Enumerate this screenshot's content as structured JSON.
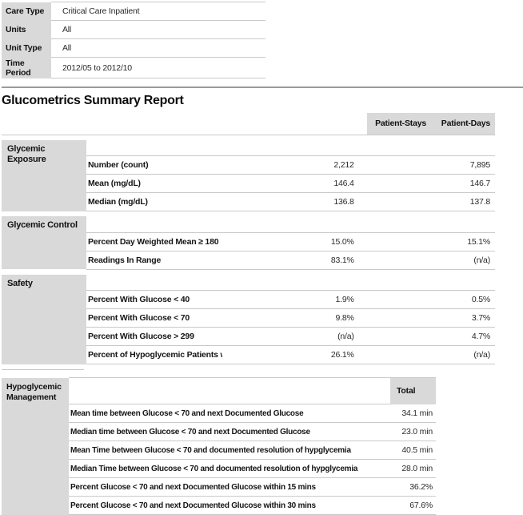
{
  "filters": {
    "rows": [
      {
        "label": "Care Type",
        "value": "Critical Care Inpatient"
      },
      {
        "label": "Units",
        "value": "All"
      },
      {
        "label": "Unit Type",
        "value": "All"
      },
      {
        "label": "Time Period",
        "value": "2012/05 to 2012/10"
      }
    ]
  },
  "report": {
    "title": "Glucometrics Summary Report",
    "columns": [
      "Patient-Stays",
      "Patient-Days"
    ],
    "sections": [
      {
        "name": "Glycemic Exposure",
        "rows": [
          {
            "label": "Number (count)",
            "patient_stays": "2,212",
            "patient_days": "7,895"
          },
          {
            "label": "Mean (mg/dL)",
            "patient_stays": "146.4",
            "patient_days": "146.7"
          },
          {
            "label": "Median (mg/dL)",
            "patient_stays": "136.8",
            "patient_days": "137.8"
          }
        ]
      },
      {
        "name": "Glycemic Control",
        "rows": [
          {
            "label": "Percent Day Weighted Mean ≥ 180",
            "patient_stays": "15.0%",
            "patient_days": "15.1%"
          },
          {
            "label": "Readings In Range",
            "patient_stays": "83.1%",
            "patient_days": "(n/a)"
          }
        ]
      },
      {
        "name": "Safety",
        "rows": [
          {
            "label": "Percent With Glucose < 40",
            "patient_stays": "1.9%",
            "patient_days": "0.5%"
          },
          {
            "label": "Percent With Glucose < 70",
            "patient_stays": "9.8%",
            "patient_days": "3.7%"
          },
          {
            "label": "Percent With Glucose > 299",
            "patient_stays": "(n/a)",
            "patient_days": "4.7%"
          },
          {
            "label": "Percent of Hypoglycemic Patients with a recurrent hypoglycemic day",
            "patient_stays": "26.1%",
            "patient_days": "(n/a)"
          }
        ]
      }
    ]
  },
  "hypoglycemic_management": {
    "name": "Hypoglycemic Management",
    "column": "Total",
    "rows": [
      {
        "label": "Mean time between Glucose < 70 and next Documented Glucose",
        "total": "34.1 min"
      },
      {
        "label": "Median time between Glucose < 70 and next Documented Glucose",
        "total": "23.0 min"
      },
      {
        "label": "Mean Time between Glucose < 70 and documented resolution of hypglycemia",
        "total": "40.5 min"
      },
      {
        "label": "Median Time between Glucose < 70 and documented resolution of hypglycemia",
        "total": "28.0 min"
      },
      {
        "label": "Percent Glucose < 70 and next Documented Glucose within 15 mins",
        "total": "36.2%"
      },
      {
        "label": "Percent Glucose < 70 and next Documented Glucose within 30 mins",
        "total": "67.6%"
      }
    ]
  }
}
